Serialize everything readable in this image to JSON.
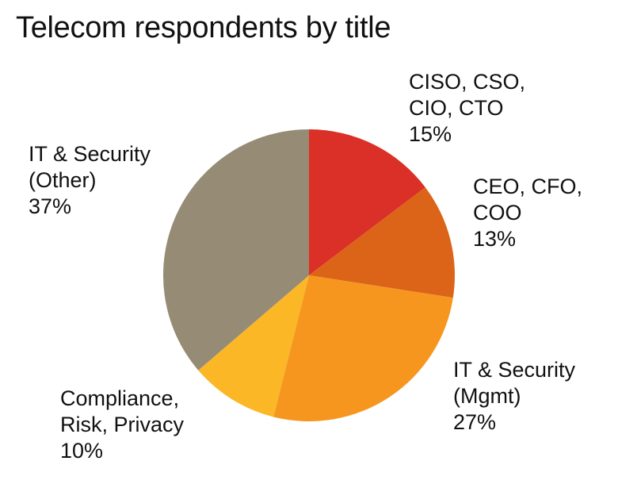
{
  "chart_data": {
    "type": "pie",
    "title": "Telecom respondents by title",
    "slices": [
      {
        "label_lines": [
          "CISO, CSO,",
          "CIO, CTO"
        ],
        "percent_label": "15%",
        "value": 15,
        "color": "#db3027"
      },
      {
        "label_lines": [
          "CEO, CFO,",
          "COO"
        ],
        "percent_label": "13%",
        "value": 13,
        "color": "#db6419"
      },
      {
        "label_lines": [
          "IT & Security",
          "(Mgmt)"
        ],
        "percent_label": "27%",
        "value": 27,
        "color": "#f6961f"
      },
      {
        "label_lines": [
          "Compliance,",
          "Risk, Privacy"
        ],
        "percent_label": "10%",
        "value": 10,
        "color": "#fbb726"
      },
      {
        "label_lines": [
          "IT & Security",
          "(Other)"
        ],
        "percent_label": "37%",
        "value": 37,
        "color": "#968b74"
      }
    ]
  }
}
